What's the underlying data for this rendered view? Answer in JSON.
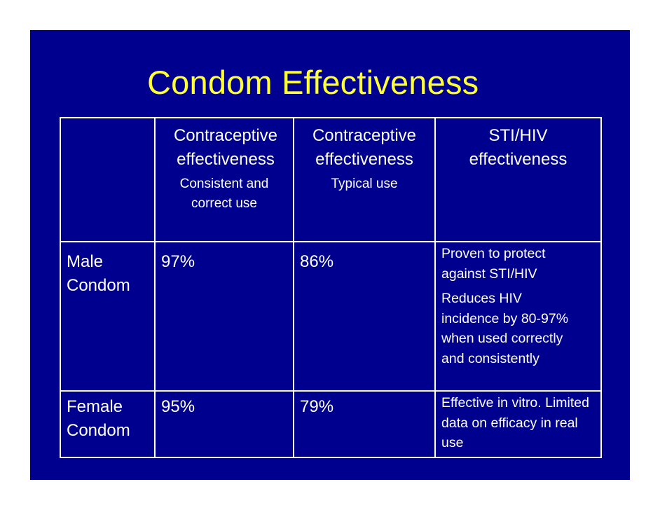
{
  "title": "Condom Effectiveness",
  "colors": {
    "background": "#00008e",
    "title": "#ffff33",
    "text": "#ffffff",
    "border": "#ffffff"
  },
  "table": {
    "headers": [
      {
        "main": "Contraceptive effectiveness",
        "sub": "Consistent and correct use"
      },
      {
        "main": "Contraceptive effectiveness",
        "sub": "Typical use"
      },
      {
        "main": "STI/HIV effectiveness",
        "sub": ""
      }
    ],
    "rows": [
      {
        "label": "Male Condom",
        "consistent": "97%",
        "typical": "86%",
        "sti_lines": [
          "Proven to protect against STI/HIV",
          "Reduces HIV incidence by 80-97% when used correctly and consistently"
        ]
      },
      {
        "label": "Female Condom",
        "consistent": "95%",
        "typical": "79%",
        "sti_lines": [
          "Effective in vitro. Limited data on efficacy in real use"
        ]
      }
    ]
  }
}
